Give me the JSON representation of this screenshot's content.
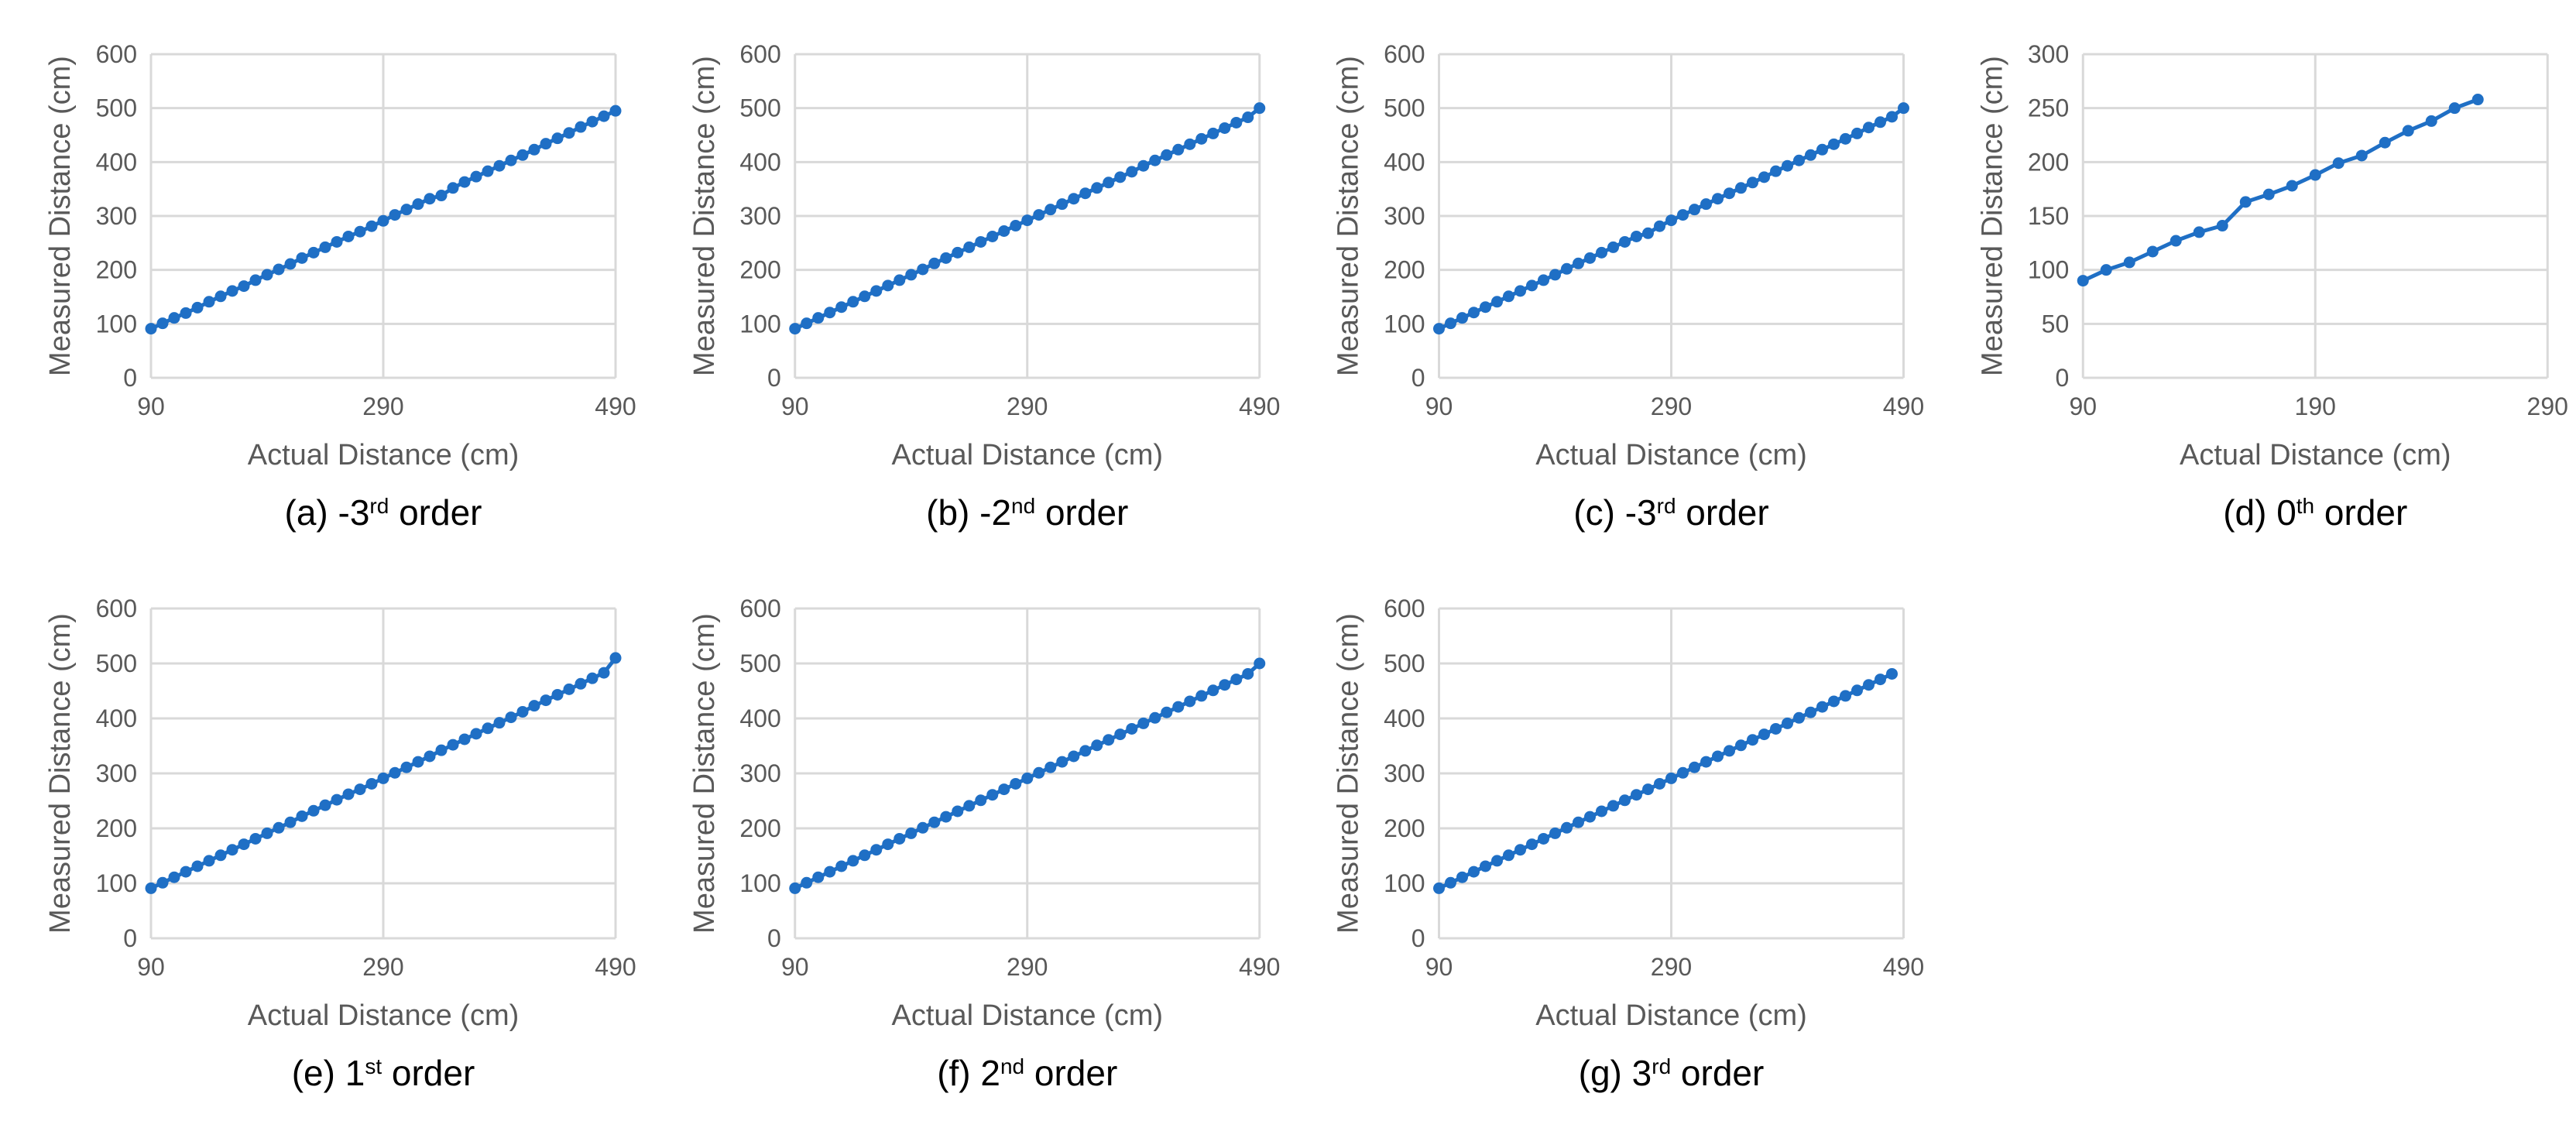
{
  "colors": {
    "series": "#1f6fc5",
    "grid": "#d9d9d9",
    "text": "#595959"
  },
  "chart_data": [
    {
      "type": "line",
      "caption": {
        "prefix": "(a) -3",
        "sup": "rd",
        "suffix": " order"
      },
      "xlabel": "Actual Distance (cm)",
      "ylabel": "Measured Distance (cm)",
      "xlim": [
        90,
        490
      ],
      "ylim": [
        0,
        600
      ],
      "xticks": [
        "90",
        "290",
        "490"
      ],
      "yticks": [
        "0",
        "100",
        "200",
        "300",
        "400",
        "500",
        "600"
      ],
      "grid": "vertical and horizontal",
      "series": [
        {
          "x": [
            90,
            100,
            110,
            120,
            130,
            140,
            150,
            160,
            170,
            180,
            190,
            200,
            210,
            220,
            230,
            240,
            250,
            260,
            270,
            280,
            290,
            300,
            310,
            320,
            330,
            340,
            350,
            360,
            370,
            380,
            390,
            400,
            410,
            420,
            430,
            440,
            450,
            460,
            470,
            480,
            490
          ],
          "y": [
            91,
            101,
            111,
            120,
            130,
            141,
            151,
            161,
            170,
            181,
            191,
            201,
            211,
            222,
            232,
            242,
            252,
            262,
            271,
            281,
            291,
            302,
            312,
            322,
            332,
            338,
            352,
            363,
            373,
            383,
            393,
            403,
            413,
            423,
            434,
            444,
            454,
            465,
            475,
            485,
            495
          ]
        }
      ]
    },
    {
      "type": "line",
      "caption": {
        "prefix": "(b) -2",
        "sup": "nd",
        "suffix": " order"
      },
      "xlabel": "Actual Distance (cm)",
      "ylabel": "Measured Distance (cm)",
      "xlim": [
        90,
        490
      ],
      "ylim": [
        0,
        600
      ],
      "xticks": [
        "90",
        "290",
        "490"
      ],
      "yticks": [
        "0",
        "100",
        "200",
        "300",
        "400",
        "500",
        "600"
      ],
      "grid": "vertical and horizontal",
      "series": [
        {
          "x": [
            90,
            100,
            110,
            120,
            130,
            140,
            150,
            160,
            170,
            180,
            190,
            200,
            210,
            220,
            230,
            240,
            250,
            260,
            270,
            280,
            290,
            300,
            310,
            320,
            330,
            340,
            350,
            360,
            370,
            380,
            390,
            400,
            410,
            420,
            430,
            440,
            450,
            460,
            470,
            480,
            490
          ],
          "y": [
            91,
            101,
            111,
            121,
            131,
            141,
            151,
            161,
            171,
            181,
            191,
            201,
            212,
            222,
            232,
            242,
            252,
            262,
            272,
            282,
            292,
            302,
            312,
            322,
            332,
            342,
            352,
            362,
            372,
            382,
            393,
            403,
            413,
            423,
            433,
            443,
            453,
            463,
            473,
            483,
            500
          ]
        }
      ]
    },
    {
      "type": "line",
      "caption": {
        "prefix": "(c) -3",
        "sup": "rd",
        "suffix": " order"
      },
      "xlabel": "Actual Distance (cm)",
      "ylabel": "Measured Distance (cm)",
      "xlim": [
        90,
        490
      ],
      "ylim": [
        0,
        600
      ],
      "xticks": [
        "90",
        "290",
        "490"
      ],
      "yticks": [
        "0",
        "100",
        "200",
        "300",
        "400",
        "500",
        "600"
      ],
      "grid": "vertical and horizontal",
      "series": [
        {
          "x": [
            90,
            100,
            110,
            120,
            130,
            140,
            150,
            160,
            170,
            180,
            190,
            200,
            210,
            220,
            230,
            240,
            250,
            260,
            270,
            280,
            290,
            300,
            310,
            320,
            330,
            340,
            350,
            360,
            370,
            380,
            390,
            400,
            410,
            420,
            430,
            440,
            450,
            460,
            470,
            480,
            490
          ],
          "y": [
            91,
            101,
            111,
            121,
            131,
            141,
            151,
            161,
            171,
            181,
            191,
            202,
            212,
            222,
            232,
            242,
            252,
            262,
            268,
            281,
            292,
            302,
            312,
            322,
            332,
            342,
            352,
            362,
            372,
            383,
            393,
            403,
            413,
            423,
            433,
            443,
            453,
            464,
            474,
            484,
            500
          ]
        }
      ]
    },
    {
      "type": "line",
      "caption": {
        "prefix": "(d) 0",
        "sup": "th",
        "suffix": " order"
      },
      "xlabel": "Actual Distance (cm)",
      "ylabel": "Measured Distance (cm)",
      "xlim": [
        90,
        290
      ],
      "ylim": [
        0,
        300
      ],
      "xticks": [
        "90",
        "190",
        "290"
      ],
      "yticks": [
        "0",
        "50",
        "100",
        "150",
        "200",
        "250",
        "300"
      ],
      "grid": "vertical and horizontal",
      "series": [
        {
          "x": [
            90,
            100,
            110,
            120,
            130,
            140,
            150,
            160,
            170,
            180,
            190,
            200,
            210,
            220,
            230,
            240,
            250,
            260
          ],
          "y": [
            90,
            100,
            107,
            117,
            127,
            135,
            141,
            163,
            170,
            178,
            188,
            199,
            206,
            218,
            229,
            238,
            250,
            258
          ]
        }
      ]
    },
    {
      "type": "line",
      "caption": {
        "prefix": "(e) 1",
        "sup": "st",
        "suffix": " order"
      },
      "xlabel": "Actual Distance (cm)",
      "ylabel": "Measured Distance (cm)",
      "xlim": [
        90,
        490
      ],
      "ylim": [
        0,
        600
      ],
      "xticks": [
        "90",
        "290",
        "490"
      ],
      "yticks": [
        "0",
        "100",
        "200",
        "300",
        "400",
        "500",
        "600"
      ],
      "grid": "vertical and horizontal",
      "series": [
        {
          "x": [
            90,
            100,
            110,
            120,
            130,
            140,
            150,
            160,
            170,
            180,
            190,
            200,
            210,
            220,
            230,
            240,
            250,
            260,
            270,
            280,
            290,
            300,
            310,
            320,
            330,
            340,
            350,
            360,
            370,
            380,
            390,
            400,
            410,
            420,
            430,
            440,
            450,
            460,
            470,
            480,
            490
          ],
          "y": [
            91,
            101,
            111,
            121,
            131,
            141,
            151,
            161,
            171,
            181,
            191,
            201,
            211,
            222,
            232,
            242,
            252,
            262,
            271,
            281,
            291,
            301,
            311,
            321,
            331,
            342,
            352,
            362,
            372,
            382,
            392,
            402,
            412,
            423,
            433,
            443,
            453,
            463,
            473,
            483,
            510
          ]
        }
      ]
    },
    {
      "type": "line",
      "caption": {
        "prefix": "(f) 2",
        "sup": "nd",
        "suffix": " order"
      },
      "xlabel": "Actual Distance (cm)",
      "ylabel": "Measured Distance (cm)",
      "xlim": [
        90,
        490
      ],
      "ylim": [
        0,
        600
      ],
      "xticks": [
        "90",
        "290",
        "490"
      ],
      "yticks": [
        "0",
        "100",
        "200",
        "300",
        "400",
        "500",
        "600"
      ],
      "grid": "vertical and horizontal",
      "series": [
        {
          "x": [
            90,
            100,
            110,
            120,
            130,
            140,
            150,
            160,
            170,
            180,
            190,
            200,
            210,
            220,
            230,
            240,
            250,
            260,
            270,
            280,
            290,
            300,
            310,
            320,
            330,
            340,
            350,
            360,
            370,
            380,
            390,
            400,
            410,
            420,
            430,
            440,
            450,
            460,
            470,
            480,
            490
          ],
          "y": [
            91,
            101,
            111,
            121,
            131,
            141,
            151,
            161,
            171,
            181,
            191,
            201,
            211,
            221,
            231,
            241,
            251,
            261,
            271,
            281,
            291,
            301,
            311,
            321,
            331,
            341,
            351,
            361,
            371,
            381,
            391,
            401,
            411,
            421,
            431,
            441,
            451,
            461,
            471,
            481,
            500
          ]
        }
      ]
    },
    {
      "type": "line",
      "caption": {
        "prefix": "(g) 3",
        "sup": "rd",
        "suffix": " order"
      },
      "xlabel": "Actual Distance (cm)",
      "ylabel": "Measured Distance (cm)",
      "xlim": [
        90,
        490
      ],
      "ylim": [
        0,
        600
      ],
      "xticks": [
        "90",
        "290",
        "490"
      ],
      "yticks": [
        "0",
        "100",
        "200",
        "300",
        "400",
        "500",
        "600"
      ],
      "grid": "vertical and horizontal",
      "series": [
        {
          "x": [
            90,
            100,
            110,
            120,
            130,
            140,
            150,
            160,
            170,
            180,
            190,
            200,
            210,
            220,
            230,
            240,
            250,
            260,
            270,
            280,
            290,
            300,
            310,
            320,
            330,
            340,
            350,
            360,
            370,
            380,
            390,
            400,
            410,
            420,
            430,
            440,
            450,
            460,
            470,
            480
          ],
          "y": [
            91,
            101,
            111,
            121,
            131,
            141,
            151,
            161,
            171,
            181,
            191,
            201,
            211,
            221,
            231,
            241,
            251,
            261,
            271,
            281,
            291,
            301,
            311,
            321,
            331,
            341,
            351,
            361,
            371,
            381,
            391,
            401,
            411,
            421,
            431,
            441,
            451,
            461,
            471,
            481
          ]
        }
      ]
    }
  ]
}
